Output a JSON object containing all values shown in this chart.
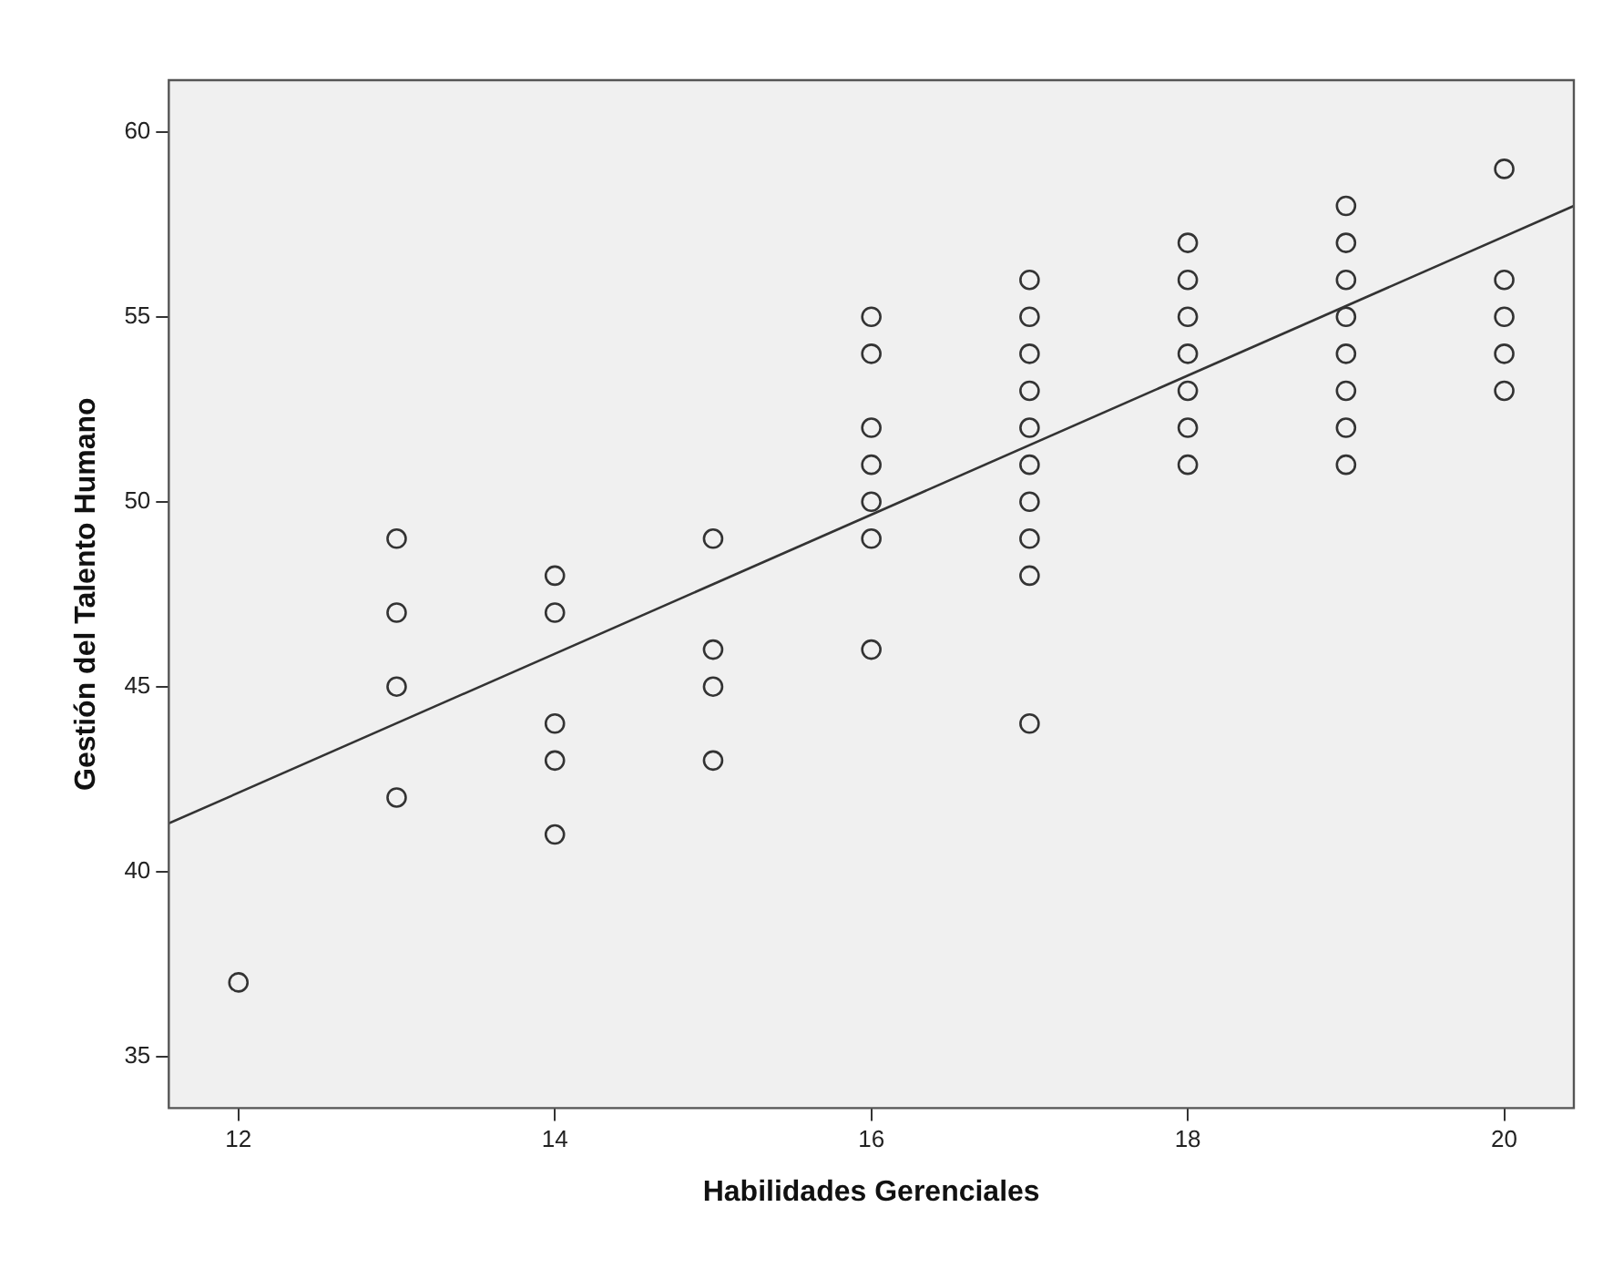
{
  "chart_data": {
    "type": "scatter",
    "xlabel": "Habilidades Gerenciales",
    "ylabel": "Gestión del Talento Humano",
    "xlim": [
      11.56,
      20.44
    ],
    "xticks": [
      12,
      14,
      16,
      18,
      20
    ],
    "ylim": [
      33.6,
      61.4
    ],
    "yticks": [
      35,
      40,
      45,
      50,
      55,
      60
    ],
    "grid": false,
    "legend": false,
    "marker": "circle",
    "series": [
      {
        "color": "#333333",
        "x": [
          12,
          13,
          13,
          13,
          13,
          14,
          14,
          14,
          14,
          14,
          15,
          15,
          15,
          15,
          16,
          16,
          16,
          16,
          16,
          16,
          16,
          17,
          17,
          17,
          17,
          17,
          17,
          17,
          17,
          17,
          17,
          18,
          18,
          18,
          18,
          18,
          18,
          18,
          19,
          19,
          19,
          19,
          19,
          19,
          19,
          19,
          20,
          20,
          20,
          20,
          20
        ],
        "values": [
          37,
          49,
          47,
          45,
          42,
          48,
          47,
          44,
          43,
          41,
          49,
          46,
          45,
          43,
          55,
          54,
          52,
          51,
          50,
          49,
          46,
          56,
          55,
          54,
          53,
          52,
          51,
          50,
          49,
          48,
          44,
          57,
          56,
          55,
          54,
          53,
          52,
          51,
          58,
          57,
          56,
          55,
          54,
          53,
          52,
          51,
          59,
          56,
          55,
          54,
          53
        ]
      },
      {
        "type": "line",
        "color": "#333333",
        "marker": "none",
        "x": [
          11.56,
          20.44
        ],
        "values": [
          41.3,
          58.0
        ]
      }
    ]
  }
}
